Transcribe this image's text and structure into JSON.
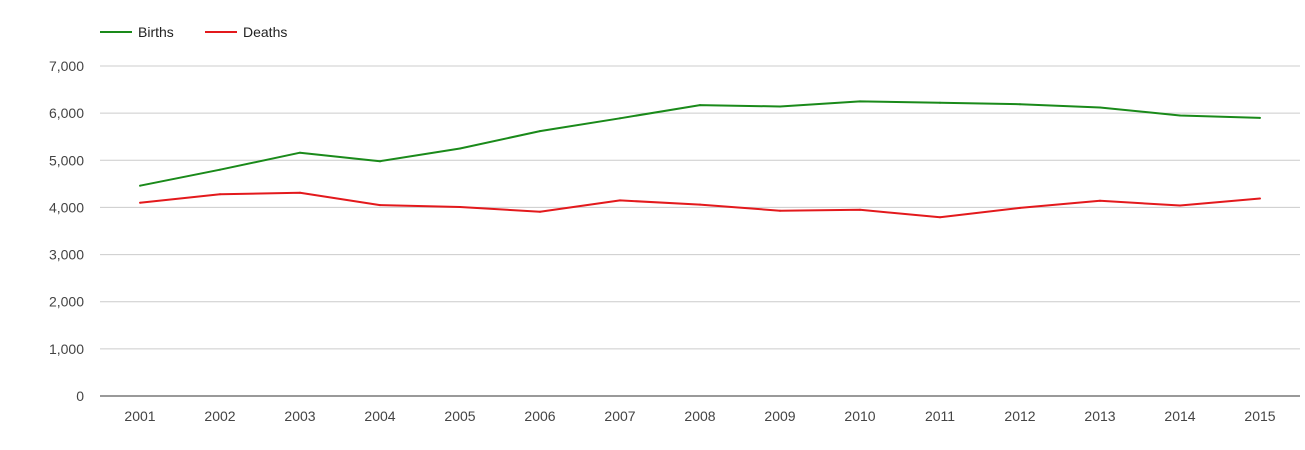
{
  "chart_data": {
    "type": "line",
    "title": "",
    "xlabel": "",
    "ylabel": "",
    "categories": [
      "2001",
      "2002",
      "2003",
      "2004",
      "2005",
      "2006",
      "2007",
      "2008",
      "2009",
      "2010",
      "2011",
      "2012",
      "2013",
      "2014",
      "2015"
    ],
    "series": [
      {
        "name": "Births",
        "color": "#1a8a1a",
        "values": [
          4460,
          4800,
          5160,
          4980,
          5250,
          5620,
          5890,
          6170,
          6140,
          6250,
          6220,
          6190,
          6120,
          5950,
          5900
        ]
      },
      {
        "name": "Deaths",
        "color": "#e3191c",
        "values": [
          4100,
          4280,
          4310,
          4050,
          4010,
          3910,
          4150,
          4060,
          3930,
          3950,
          3790,
          3990,
          4140,
          4040,
          4190
        ]
      }
    ],
    "ylim": [
      0,
      7000
    ],
    "yticks": [
      0,
      1000,
      2000,
      3000,
      4000,
      5000,
      6000,
      7000
    ],
    "ytick_labels": [
      "0",
      "1,000",
      "2,000",
      "3,000",
      "4,000",
      "5,000",
      "6,000",
      "7,000"
    ],
    "grid": true,
    "legend_position": "top-left"
  }
}
